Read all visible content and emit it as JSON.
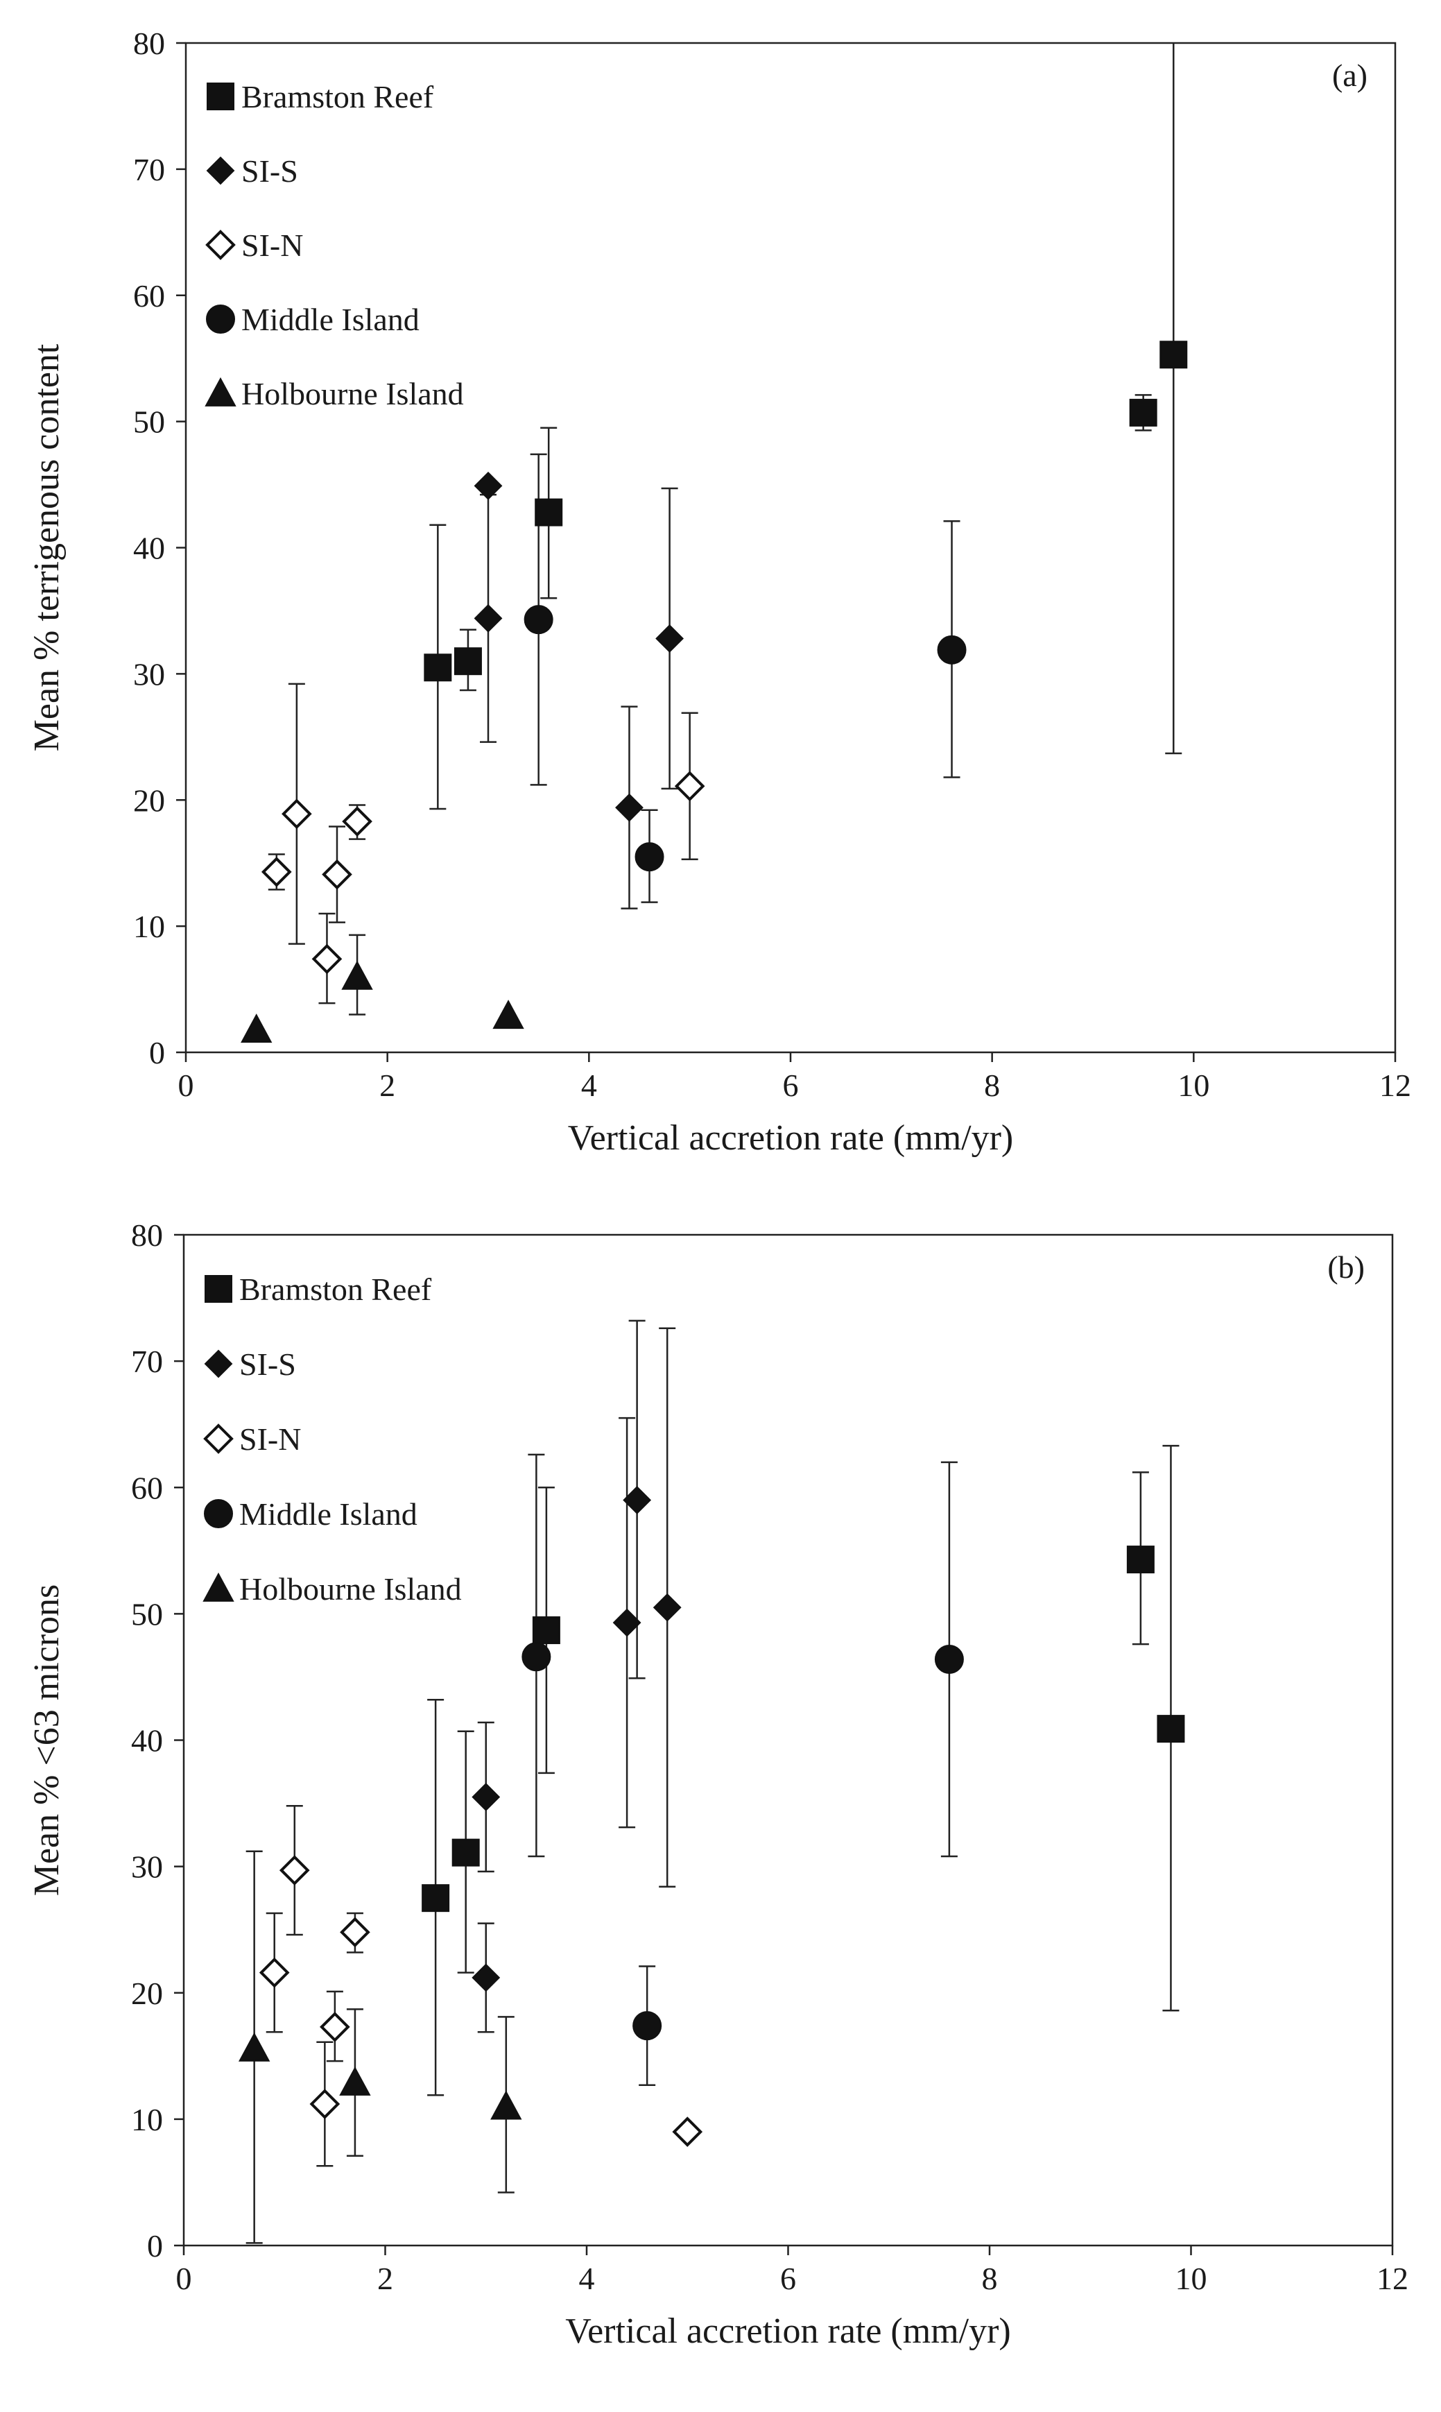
{
  "chart_data": [
    {
      "type": "scatter",
      "panel_label": "(a)",
      "xlabel": "Vertical accretion rate (mm/yr)",
      "ylabel": "Mean % terrigenous content",
      "xlim": [
        0,
        12
      ],
      "ylim": [
        0,
        80
      ],
      "xticks": [
        0,
        2,
        4,
        6,
        8,
        10,
        12
      ],
      "yticks": [
        0,
        10,
        20,
        30,
        40,
        50,
        60,
        70,
        80
      ],
      "grid": false,
      "error_bars": true,
      "legend_position": "top-left",
      "series": [
        {
          "name": "Bramston Reef",
          "marker": "square",
          "filled": true,
          "points": [
            {
              "x": 2.5,
              "y": 30.5,
              "lo": 19.3,
              "hi": 41.8
            },
            {
              "x": 2.8,
              "y": 31.0,
              "lo": 28.7,
              "hi": 33.5
            },
            {
              "x": 3.6,
              "y": 42.8,
              "lo": 36.0,
              "hi": 49.5
            },
            {
              "x": 9.5,
              "y": 50.7,
              "lo": 49.3,
              "hi": 52.1
            },
            {
              "x": 9.8,
              "y": 55.3,
              "lo": 23.7,
              "hi": 80.0
            }
          ]
        },
        {
          "name": "SI-S",
          "marker": "diamond",
          "filled": true,
          "points": [
            {
              "x": 3.0,
              "y": 44.9,
              "lo": 44.9,
              "hi": 44.9
            },
            {
              "x": 3.0,
              "y": 34.4,
              "lo": 24.6,
              "hi": 44.2
            },
            {
              "x": 4.4,
              "y": 19.4,
              "lo": 11.4,
              "hi": 27.4
            },
            {
              "x": 4.8,
              "y": 32.8,
              "lo": 20.9,
              "hi": 44.7
            }
          ]
        },
        {
          "name": "SI-N",
          "marker": "diamond",
          "filled": false,
          "points": [
            {
              "x": 0.9,
              "y": 14.3,
              "lo": 12.9,
              "hi": 15.7
            },
            {
              "x": 1.1,
              "y": 18.9,
              "lo": 8.6,
              "hi": 29.2
            },
            {
              "x": 1.4,
              "y": 7.4,
              "lo": 3.9,
              "hi": 11.0
            },
            {
              "x": 1.5,
              "y": 14.1,
              "lo": 10.3,
              "hi": 17.9
            },
            {
              "x": 1.7,
              "y": 18.3,
              "lo": 16.9,
              "hi": 19.6
            },
            {
              "x": 5.0,
              "y": 21.1,
              "lo": 15.3,
              "hi": 26.9
            }
          ]
        },
        {
          "name": "Middle Island",
          "marker": "circle",
          "filled": true,
          "points": [
            {
              "x": 3.5,
              "y": 34.3,
              "lo": 21.2,
              "hi": 47.4
            },
            {
              "x": 4.6,
              "y": 15.5,
              "lo": 11.9,
              "hi": 19.2
            },
            {
              "x": 7.6,
              "y": 31.9,
              "lo": 21.8,
              "hi": 42.1
            }
          ]
        },
        {
          "name": "Holbourne Island",
          "marker": "triangle",
          "filled": true,
          "points": [
            {
              "x": 0.7,
              "y": 1.8,
              "lo": 1.8,
              "hi": 1.8
            },
            {
              "x": 1.7,
              "y": 6.0,
              "lo": 3.0,
              "hi": 9.3
            },
            {
              "x": 3.2,
              "y": 2.9,
              "lo": 2.9,
              "hi": 2.9
            }
          ]
        }
      ]
    },
    {
      "type": "scatter",
      "panel_label": "(b)",
      "xlabel": "Vertical accretion rate (mm/yr)",
      "ylabel": "Mean % <63 microns",
      "xlim": [
        0,
        12
      ],
      "ylim": [
        0,
        80
      ],
      "xticks": [
        0,
        2,
        4,
        6,
        8,
        10,
        12
      ],
      "yticks": [
        0,
        10,
        20,
        30,
        40,
        50,
        60,
        70,
        80
      ],
      "grid": false,
      "error_bars": true,
      "legend_position": "top-left",
      "series": [
        {
          "name": "Bramston Reef",
          "marker": "square",
          "filled": true,
          "points": [
            {
              "x": 2.5,
              "y": 27.5,
              "lo": 11.9,
              "hi": 43.2
            },
            {
              "x": 2.8,
              "y": 31.1,
              "lo": 21.6,
              "hi": 40.7
            },
            {
              "x": 3.6,
              "y": 48.7,
              "lo": 37.4,
              "hi": 60.0
            },
            {
              "x": 9.5,
              "y": 54.3,
              "lo": 47.6,
              "hi": 61.2
            },
            {
              "x": 9.8,
              "y": 40.9,
              "lo": 18.6,
              "hi": 63.3
            }
          ]
        },
        {
          "name": "SI-S",
          "marker": "diamond",
          "filled": true,
          "points": [
            {
              "x": 3.0,
              "y": 35.5,
              "lo": 29.6,
              "hi": 41.4
            },
            {
              "x": 3.0,
              "y": 21.2,
              "lo": 16.9,
              "hi": 25.5
            },
            {
              "x": 4.4,
              "y": 49.3,
              "lo": 33.1,
              "hi": 65.5
            },
            {
              "x": 4.5,
              "y": 59.0,
              "lo": 44.9,
              "hi": 73.2
            },
            {
              "x": 4.8,
              "y": 50.5,
              "lo": 28.4,
              "hi": 72.6
            }
          ]
        },
        {
          "name": "SI-N",
          "marker": "diamond",
          "filled": false,
          "points": [
            {
              "x": 0.9,
              "y": 21.6,
              "lo": 16.9,
              "hi": 26.3
            },
            {
              "x": 1.1,
              "y": 29.7,
              "lo": 24.6,
              "hi": 34.8
            },
            {
              "x": 1.4,
              "y": 11.2,
              "lo": 6.3,
              "hi": 16.1
            },
            {
              "x": 1.5,
              "y": 17.3,
              "lo": 14.6,
              "hi": 20.1
            },
            {
              "x": 1.7,
              "y": 24.8,
              "lo": 23.2,
              "hi": 26.3
            },
            {
              "x": 5.0,
              "y": 9.0,
              "lo": 9.0,
              "hi": 9.0
            }
          ]
        },
        {
          "name": "Middle Island",
          "marker": "circle",
          "filled": true,
          "points": [
            {
              "x": 3.5,
              "y": 46.6,
              "lo": 30.8,
              "hi": 62.6
            },
            {
              "x": 4.6,
              "y": 17.4,
              "lo": 12.7,
              "hi": 22.1
            },
            {
              "x": 7.6,
              "y": 46.4,
              "lo": 30.8,
              "hi": 62.0
            }
          ]
        },
        {
          "name": "Holbourne Island",
          "marker": "triangle",
          "filled": true,
          "points": [
            {
              "x": 0.7,
              "y": 15.6,
              "lo": 0.2,
              "hi": 31.2
            },
            {
              "x": 1.7,
              "y": 12.9,
              "lo": 7.1,
              "hi": 18.7
            },
            {
              "x": 3.2,
              "y": 11.0,
              "lo": 4.2,
              "hi": 18.1
            }
          ]
        }
      ]
    }
  ]
}
